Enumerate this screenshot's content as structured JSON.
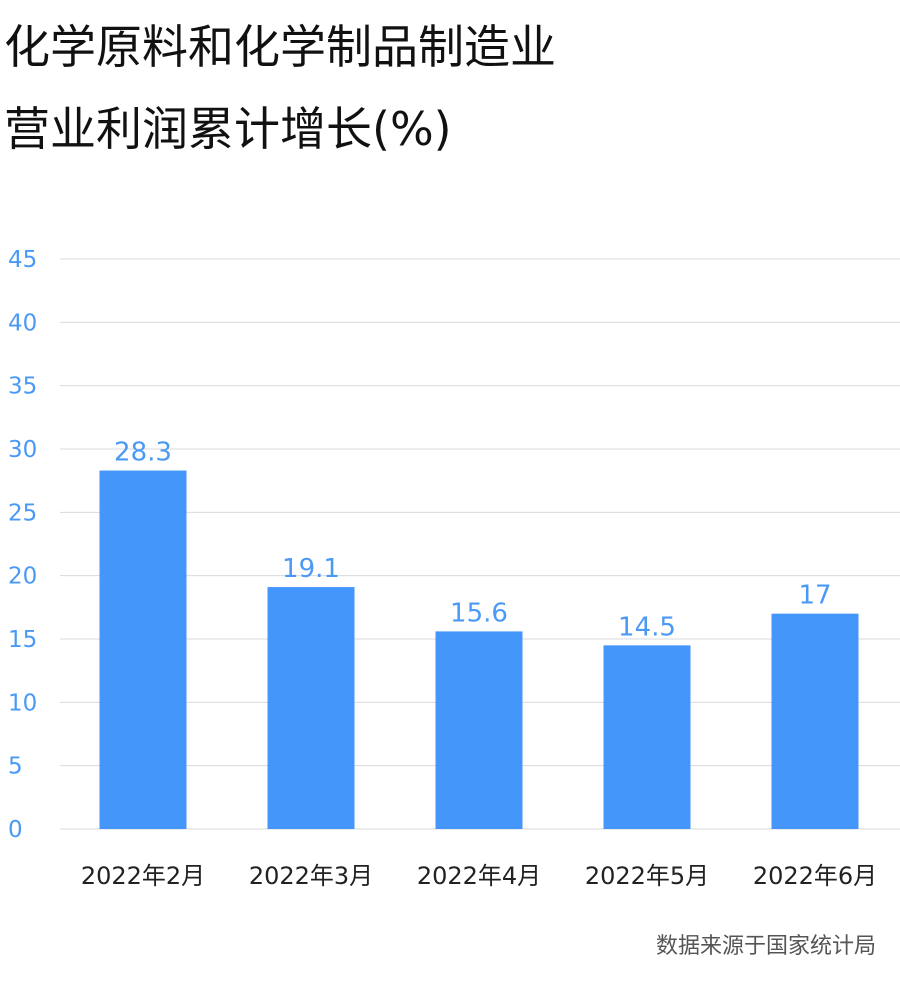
{
  "title_lines": [
    "化学原料和化学制品制造业",
    "营业利润累计增长(%)"
  ],
  "source": "数据来源于国家统计局",
  "colors": {
    "bar": "#4596fa",
    "label": "#4a9af5",
    "grid": "#d9d9d9",
    "tick": "#4a9af5",
    "category": "#222222"
  },
  "chart_data": {
    "type": "bar",
    "title": "化学原料和化学制品制造业 营业利润累计增长(%)",
    "categories": [
      "2022年2月",
      "2022年3月",
      "2022年4月",
      "2022年5月",
      "2022年6月"
    ],
    "values": [
      28.3,
      19.1,
      15.6,
      14.5,
      17
    ],
    "data_labels": [
      "28.3",
      "19.1",
      "15.6",
      "14.5",
      "17"
    ],
    "ylim": [
      0,
      45
    ],
    "yticks": [
      0,
      5,
      10,
      15,
      20,
      25,
      30,
      35,
      40,
      45
    ],
    "grid": true,
    "xlabel": "",
    "ylabel": ""
  }
}
